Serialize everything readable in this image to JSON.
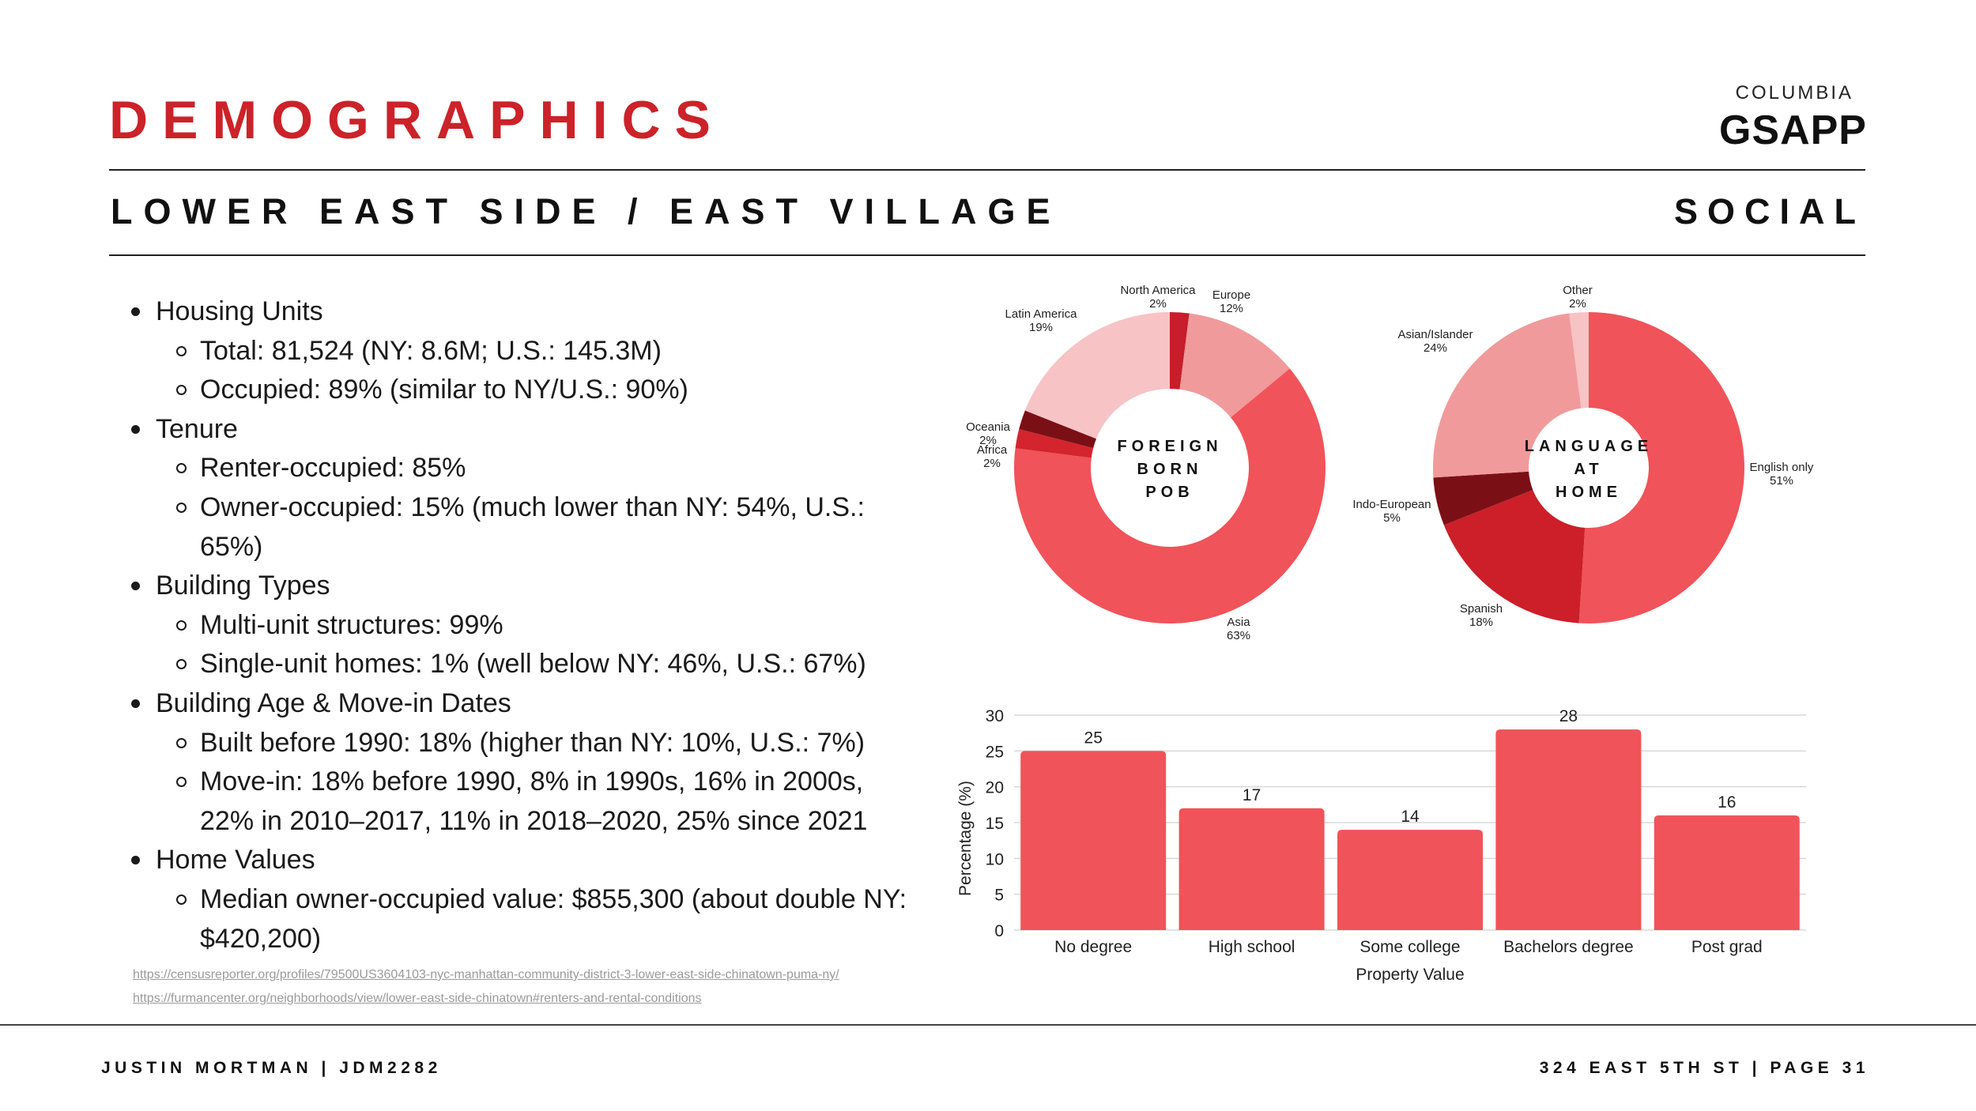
{
  "header": {
    "title": "DEMOGRAPHICS",
    "subtitle": "LOWER EAST SIDE / EAST VILLAGE",
    "section": "SOCIAL",
    "logo_top": "COLUMBIA",
    "logo_main": "GSAPP"
  },
  "bullets": [
    {
      "text": "Housing Units",
      "children": [
        "Total: 81,524 (NY: 8.6M; U.S.: 145.3M)",
        "Occupied: 89% (similar to NY/U.S.: 90%)"
      ]
    },
    {
      "text": "Tenure",
      "children": [
        "Renter-occupied: 85%",
        "Owner-occupied: 15% (much lower than NY: 54%, U.S.: 65%)"
      ]
    },
    {
      "text": "Building Types",
      "children": [
        "Multi-unit structures: 99%",
        "Single-unit homes: 1% (well below NY: 46%, U.S.: 67%)"
      ]
    },
    {
      "text": "Building Age & Move-in Dates",
      "children": [
        "Built before 1990: 18% (higher than NY: 10%, U.S.: 7%)",
        "Move-in: 18% before 1990, 8% in 1990s, 16% in 2000s, 22% in 2010–2017, 11% in 2018–2020, 25% since 2021"
      ]
    },
    {
      "text": "Home Values",
      "children": [
        "Median owner-occupied value: $855,300 (about double NY: $420,200)"
      ]
    }
  ],
  "sources": [
    "https://censusreporter.org/profiles/79500US3604103-nyc-manhattan-community-district-3-lower-east-side-chinatown-puma-ny/",
    "https://furmancenter.org/neighborhoods/view/lower-east-side-chinatown#renters-and-rental-conditions"
  ],
  "footer": {
    "left": "JUSTIN MORTMAN | JDM2282",
    "right": "324 EAST 5TH ST | PAGE 31"
  },
  "chart_data": [
    {
      "type": "pie",
      "title_lines": [
        "FOREIGN",
        "BORN",
        "POB"
      ],
      "slices": [
        {
          "label": "North America",
          "pct_label": "2%",
          "value": 2,
          "color": "#c81d2a"
        },
        {
          "label": "Europe",
          "pct_label": "12%",
          "value": 12,
          "color": "#f19a9b"
        },
        {
          "label": "Asia",
          "pct_label": "63%",
          "value": 63,
          "color": "#f05359"
        },
        {
          "label": "Africa",
          "pct_label": "2%",
          "value": 2,
          "color": "#d4242e"
        },
        {
          "label": "Oceania",
          "pct_label": "2%",
          "value": 2,
          "color": "#7a1016"
        },
        {
          "label": "Latin America",
          "pct_label": "19%",
          "value": 19,
          "color": "#f7c3c5"
        }
      ]
    },
    {
      "type": "pie",
      "title_lines": [
        "LANGUAGE",
        "AT",
        "HOME"
      ],
      "slices": [
        {
          "label": "English only",
          "pct_label": "51%",
          "value": 51,
          "color": "#f05359"
        },
        {
          "label": "Spanish",
          "pct_label": "18%",
          "value": 18,
          "color": "#cc1f29"
        },
        {
          "label": "Indo-European",
          "pct_label": "5%",
          "value": 5,
          "color": "#7a1016"
        },
        {
          "label": "Asian/Islander",
          "pct_label": "24%",
          "value": 24,
          "color": "#f19a9b"
        },
        {
          "label": "Other",
          "pct_label": "2%",
          "value": 2,
          "color": "#f7c3c5"
        }
      ]
    },
    {
      "type": "bar",
      "categories": [
        "No degree",
        "High school",
        "Some college",
        "Bachelors degree",
        "Post grad"
      ],
      "values": [
        25,
        17,
        14,
        28,
        16
      ],
      "xlabel": "Property Value",
      "ylabel": "Percentage (%)",
      "ylim": [
        0,
        30
      ],
      "yticks": [
        0,
        5,
        10,
        15,
        20,
        25,
        30
      ],
      "color": "#f05359"
    }
  ]
}
